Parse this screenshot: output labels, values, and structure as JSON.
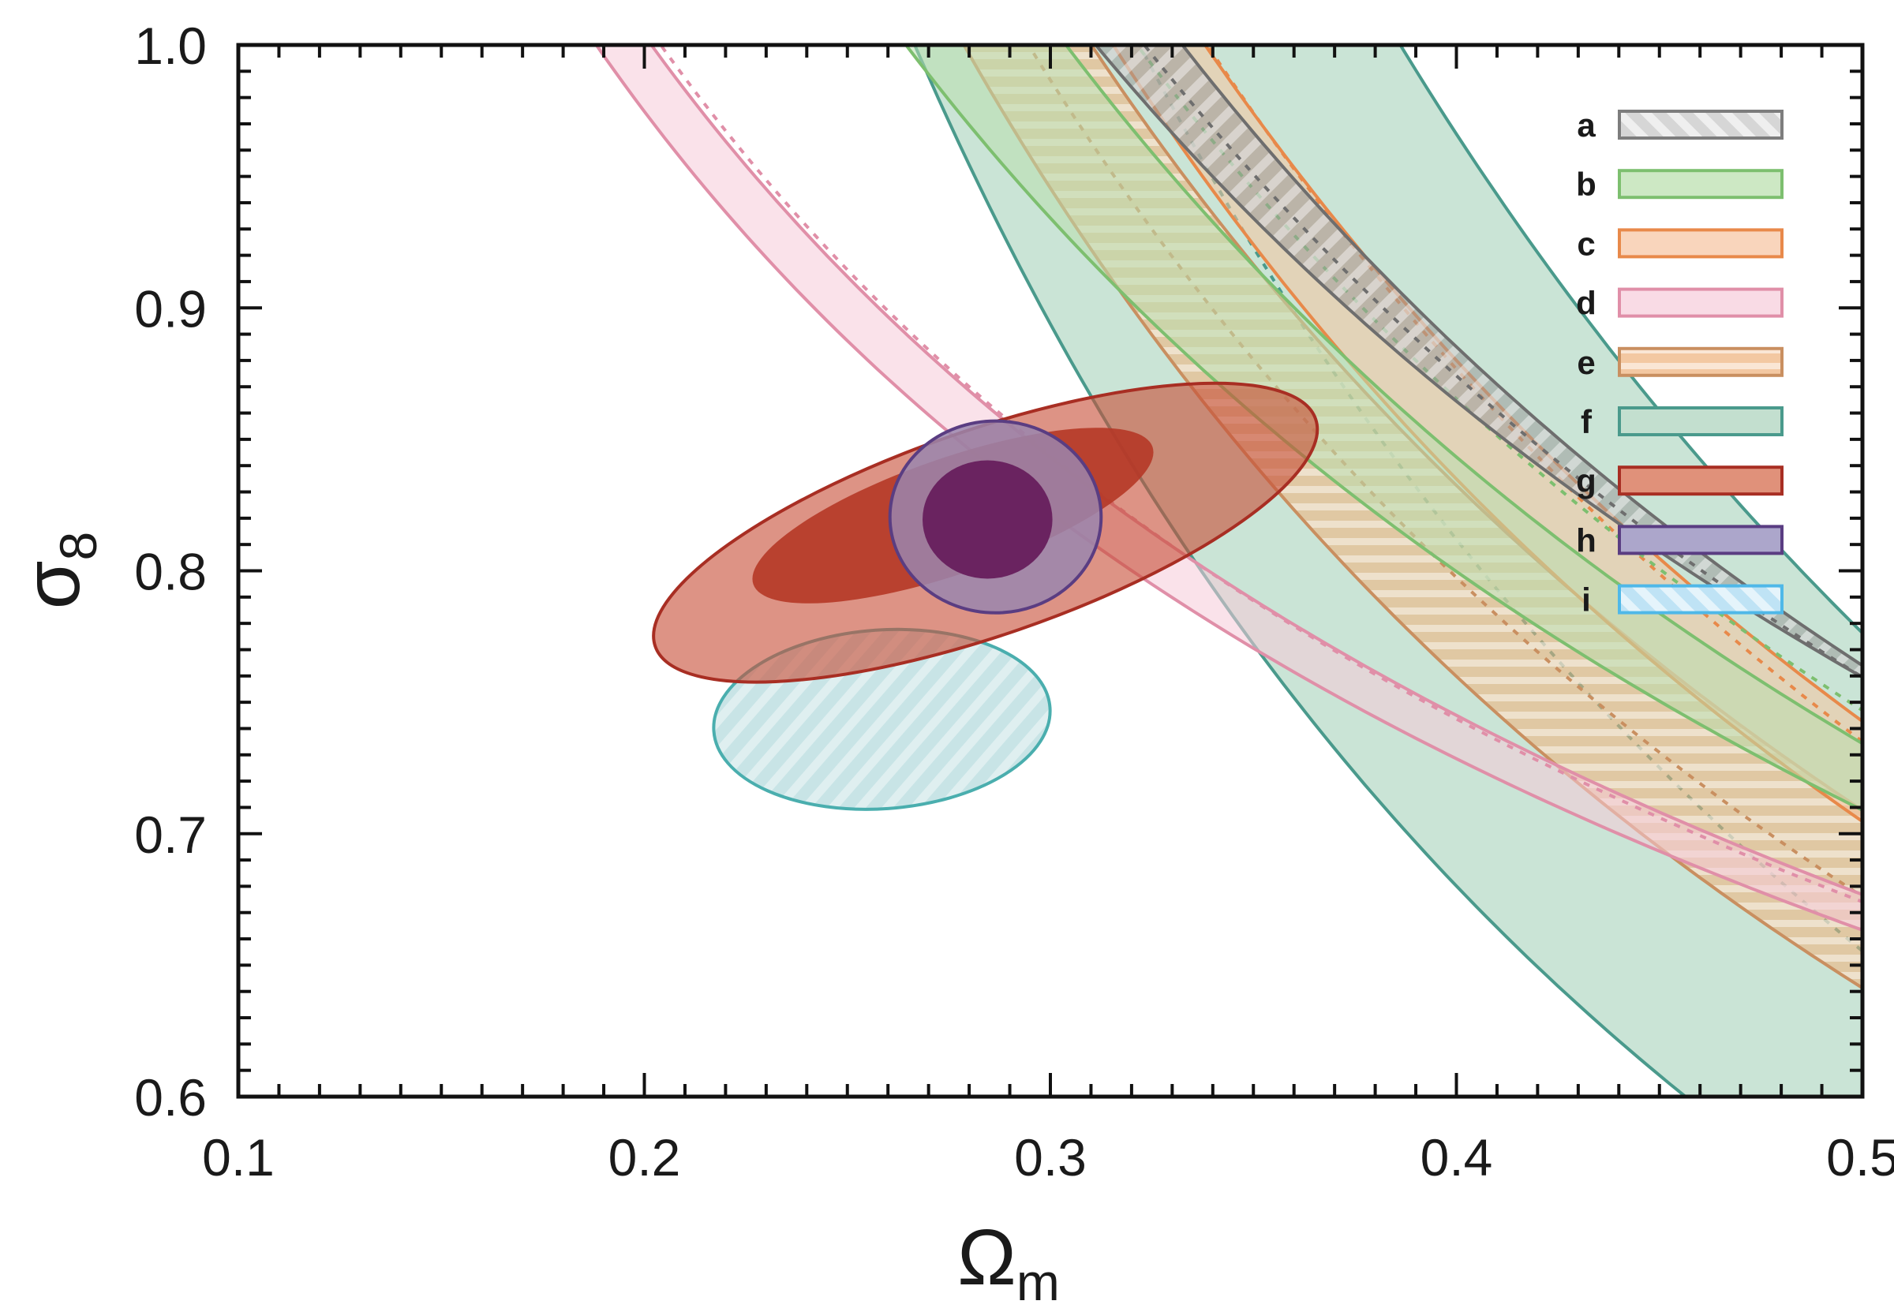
{
  "chart_data": {
    "type": "area",
    "xlabel": "Ω",
    "xlabel_sub": "m",
    "ylabel": "σ",
    "ylabel_sub": "8",
    "xlim": [
      0.1,
      0.5
    ],
    "ylim": [
      0.6,
      1.0
    ],
    "x_ticks": [
      "0.1",
      "0.2",
      "0.3",
      "0.4",
      "0.5"
    ],
    "y_ticks": [
      "0.6",
      "0.7",
      "0.8",
      "0.9",
      "1.0"
    ],
    "grid": false,
    "legend_position": "top-right",
    "bands": [
      {
        "name": "a",
        "color": "#9a9a9a",
        "edge": "#6e6e6e",
        "hatch": "diagonal",
        "lower": {
          "amp": 0.5081,
          "exp": 0.58
        },
        "center": {
          "amp": 0.4908,
          "exp": 0.63
        },
        "upper": {
          "amp": 0.4835,
          "exp": 0.66
        }
      },
      {
        "name": "b",
        "color": "#b9dfaf",
        "edge": "#7dbf6f",
        "hatch": "none",
        "lower": {
          "amp": 0.4778,
          "exp": 0.62
        },
        "center": {
          "amp": 0.4727,
          "exp": 0.66
        },
        "upper": {
          "amp": 0.4876,
          "exp": 0.54
        }
      },
      {
        "name": "c",
        "color": "#f6c4a0",
        "edge": "#e8894a",
        "hatch": "none",
        "lower": {
          "amp": 0.4161,
          "exp": 0.76
        },
        "center": {
          "amp": 0.4251,
          "exp": 0.79
        },
        "upper": {
          "amp": 0.4386,
          "exp": 0.76
        }
      },
      {
        "name": "d",
        "color": "#f6cbd8",
        "edge": "#e08fa8",
        "hatch": "none",
        "lower": {
          "amp": 0.5024,
          "exp": 0.43
        },
        "center": {
          "amp": 0.4969,
          "exp": 0.44
        },
        "upper": {
          "amp": 0.4958,
          "exp": 0.42
        }
      },
      {
        "name": "e",
        "color": "#f2b07a",
        "edge": "#c98f60",
        "hatch": "horizontal",
        "lower": {
          "amp": 0.3787,
          "exp": 0.76
        },
        "center": {
          "amp": 0.4048,
          "exp": 0.74
        },
        "upper": {
          "amp": 0.4304,
          "exp": 0.72
        }
      },
      {
        "name": "f",
        "color": "#9fcdb5",
        "edge": "#4a9a8c",
        "hatch": "none",
        "lower": {
          "amp": 0.2848,
          "exp": 0.95
        },
        "center": {
          "amp": 0.3369,
          "exp": 0.96
        },
        "upper": {
          "amp": 0.3936,
          "exp": 0.98
        }
      }
    ],
    "ellipses": [
      {
        "name": "g",
        "color": "#c8503a",
        "edge": "#a82e23",
        "cx": 0.284,
        "cy": 0.8145,
        "rx": 0.086,
        "ry": 0.039,
        "angle_deg": 19,
        "inner": {
          "cx": 0.276,
          "cy": 0.821,
          "rx": 0.052,
          "ry": 0.022,
          "angle_deg": 19,
          "color": "#b53a28"
        }
      },
      {
        "name": "h",
        "color": "#9a86ae",
        "edge": "#5a3d82",
        "cx": 0.2865,
        "cy": 0.8205,
        "rx": 0.026,
        "ry": 0.0365,
        "angle_deg": 0,
        "inner": {
          "cx": 0.2845,
          "cy": 0.8195,
          "rx": 0.016,
          "ry": 0.0225,
          "angle_deg": 0,
          "color": "#6a2360"
        }
      },
      {
        "name": "i",
        "color": "#84c3c8",
        "edge": "#4aaeae",
        "hatch": "diagonal",
        "cx": 0.2585,
        "cy": 0.7435,
        "rx": 0.0415,
        "ry": 0.034,
        "angle_deg": 4
      }
    ],
    "legend": [
      {
        "label": "a",
        "fill": "#d6d6d6",
        "edge": "#7d7d7d",
        "hatch": "diagonal"
      },
      {
        "label": "b",
        "fill": "#cde8c4",
        "edge": "#7dbf6f",
        "hatch": "none"
      },
      {
        "label": "c",
        "fill": "#f9d5bc",
        "edge": "#e8894a",
        "hatch": "none"
      },
      {
        "label": "d",
        "fill": "#f9dbe5",
        "edge": "#e08fa8",
        "hatch": "none"
      },
      {
        "label": "e",
        "fill": "#f3c8a2",
        "edge": "#c98f60",
        "hatch": "horizontal"
      },
      {
        "label": "f",
        "fill": "#c3dfcf",
        "edge": "#4a9a8c",
        "hatch": "none"
      },
      {
        "label": "g",
        "fill": "#e0917a",
        "edge": "#a82e23",
        "hatch": "none"
      },
      {
        "label": "h",
        "fill": "#aca6cb",
        "edge": "#5a3d82",
        "hatch": "none"
      },
      {
        "label": "i",
        "fill": "#bfe3f5",
        "edge": "#4fb8e8",
        "hatch": "diagonal"
      }
    ]
  }
}
